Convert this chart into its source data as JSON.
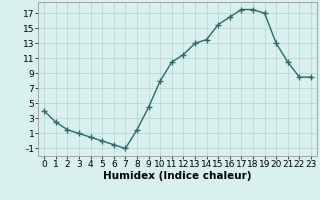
{
  "x": [
    0,
    1,
    2,
    3,
    4,
    5,
    6,
    7,
    8,
    9,
    10,
    11,
    12,
    13,
    14,
    15,
    16,
    17,
    18,
    19,
    20,
    21,
    22,
    23
  ],
  "y": [
    4.0,
    2.5,
    1.5,
    1.0,
    0.5,
    0.0,
    -0.5,
    -1.0,
    1.5,
    4.5,
    8.0,
    10.5,
    11.5,
    13.0,
    13.5,
    15.5,
    16.5,
    17.5,
    17.5,
    17.0,
    13.0,
    10.5,
    8.5,
    8.5
  ],
  "line_color": "#2d6b6b",
  "marker": "+",
  "marker_size": 4,
  "bg_color": "#d8f0ee",
  "grid_color": "#c0d8d4",
  "xlabel": "Humidex (Indice chaleur)",
  "xlabel_fontsize": 7.5,
  "yticks": [
    -1,
    1,
    3,
    5,
    7,
    9,
    11,
    13,
    15,
    17
  ],
  "xticks": [
    0,
    1,
    2,
    3,
    4,
    5,
    6,
    7,
    8,
    9,
    10,
    11,
    12,
    13,
    14,
    15,
    16,
    17,
    18,
    19,
    20,
    21,
    22,
    23
  ],
  "ylim": [
    -2.0,
    18.5
  ],
  "xlim": [
    -0.5,
    23.5
  ],
  "tick_fontsize": 6.5,
  "linewidth": 1.0
}
